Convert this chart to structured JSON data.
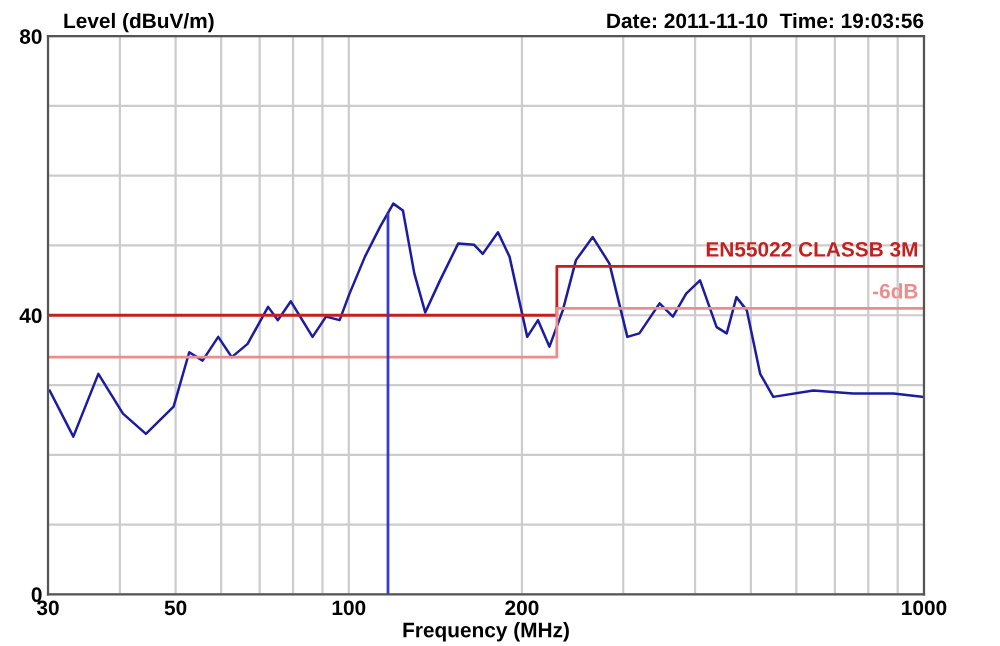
{
  "chart_data": {
    "type": "line",
    "subtitle": "Date: 2011-11-10  Time: 19:03:56",
    "ylabel": "Level (dBuV/m)",
    "xlabel": "Frequency (MHz)",
    "log": "x",
    "xlim": [
      30,
      1000
    ],
    "ylim": [
      0,
      80
    ],
    "xticks": [
      30,
      {
        "value": 40,
        "label": null
      },
      50,
      {
        "value": 60,
        "label": null
      },
      {
        "value": 70,
        "label": null
      },
      {
        "value": 80,
        "label": null
      },
      {
        "value": 90,
        "label": null
      },
      100,
      200,
      {
        "value": 300,
        "label": null
      },
      {
        "value": 400,
        "label": null
      },
      {
        "value": 500,
        "label": null
      },
      {
        "value": 600,
        "label": null
      },
      {
        "value": 700,
        "label": null
      },
      {
        "value": 800,
        "label": null
      },
      {
        "value": 900,
        "label": null
      },
      1000
    ],
    "yticks": [
      0,
      {
        "value": 10,
        "label": null
      },
      {
        "value": 20,
        "label": null
      },
      {
        "value": 30,
        "label": null
      },
      40,
      {
        "value": 50,
        "label": null
      },
      {
        "value": 60,
        "label": null
      },
      {
        "value": 70,
        "label": null
      },
      80
    ],
    "grid": true,
    "legend": false,
    "series": [
      {
        "color": "#1c1ca0",
        "x": [
          30.2,
          33.2,
          36.7,
          40.5,
          44.4,
          49.6,
          52.8,
          55.7,
          59.3,
          62.6,
          66.7,
          72.4,
          75.3,
          79.3,
          86.5,
          91.3,
          96.4,
          100.3,
          106.7,
          113.4,
          119.5,
          124.2,
          130,
          135.8,
          144.1,
          155,
          165.2,
          171,
          181.7,
          190.3,
          204.3,
          213.3,
          223.3,
          235.5,
          248.3,
          265.5,
          283.9,
          305,
          320,
          347,
          366,
          386,
          408,
          436,
          454,
          472,
          492,
          519,
          547,
          642,
          753,
          885,
          997
        ],
        "values": [
          29.2,
          22.6,
          31.6,
          25.9,
          23.0,
          26.9,
          34.7,
          33.5,
          36.9,
          34.0,
          35.9,
          41.2,
          39.3,
          42.0,
          36.9,
          39.8,
          39.3,
          43.1,
          48.4,
          52.7,
          56.0,
          55.0,
          46.0,
          40.4,
          45.0,
          50.3,
          50.1,
          48.8,
          51.9,
          48.4,
          36.9,
          39.3,
          35.5,
          40.7,
          47.9,
          51.2,
          47.4,
          36.9,
          37.4,
          41.7,
          39.8,
          43.1,
          45.0,
          38.3,
          37.4,
          42.6,
          40.7,
          31.6,
          28.3,
          29.2,
          28.8,
          28.8,
          28.3
        ]
      },
      {
        "type": "step",
        "color": "#c42020",
        "x": [
          30,
          230,
          1000
        ],
        "values": [
          40,
          47,
          47
        ]
      },
      {
        "type": "step",
        "color": "#ec8c8c",
        "x": [
          30,
          230,
          1000
        ],
        "values": [
          34,
          41,
          41
        ]
      }
    ],
    "ref_lines": [
      {
        "axis": "x",
        "value": 117,
        "color": "#3a3ac8"
      }
    ],
    "annotations": [
      {
        "text": "EN55022 CLASSB 3M",
        "x": 1000,
        "y": 47
      },
      {
        "text": "-6dB",
        "x": 1000,
        "y": 41
      }
    ]
  }
}
